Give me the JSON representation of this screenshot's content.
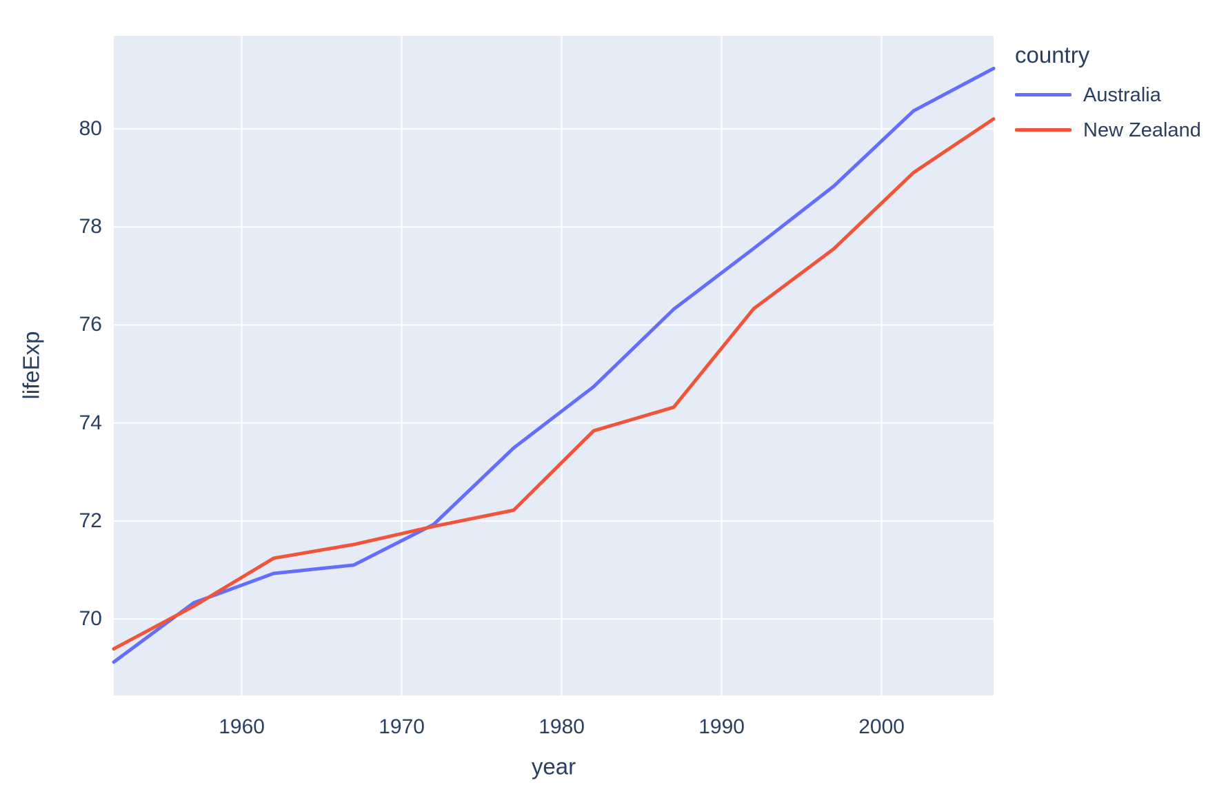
{
  "chart_data": {
    "type": "line",
    "title": "",
    "xlabel": "year",
    "ylabel": "lifeExp",
    "legend_title": "country",
    "x": [
      1952,
      1957,
      1962,
      1967,
      1972,
      1977,
      1982,
      1987,
      1992,
      1997,
      2002,
      2007
    ],
    "series": [
      {
        "name": "Australia",
        "color": "#636EFA",
        "values": [
          69.12,
          70.33,
          70.93,
          71.1,
          71.93,
          73.49,
          74.74,
          76.32,
          77.56,
          78.83,
          80.37,
          81.235
        ]
      },
      {
        "name": "New Zealand",
        "color": "#EF553B",
        "values": [
          69.39,
          70.26,
          71.24,
          71.52,
          71.89,
          72.22,
          73.84,
          74.32,
          76.33,
          77.55,
          79.11,
          80.204
        ]
      }
    ],
    "xticks": [
      1960,
      1970,
      1980,
      1990,
      2000
    ],
    "yticks": [
      70,
      72,
      74,
      76,
      78,
      80
    ],
    "xlim": [
      1952,
      2007
    ],
    "ylim": [
      68.44,
      81.9
    ],
    "grid": true,
    "legend_position": "right",
    "colors": {
      "plot_background": "#E5ECF6",
      "paper_background": "#FFFFFF",
      "gridline": "#FFFFFF",
      "text": "#2a3f5f"
    }
  }
}
